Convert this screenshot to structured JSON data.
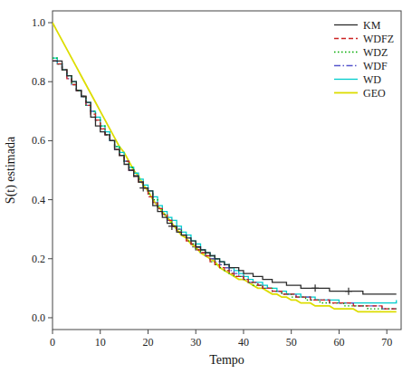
{
  "chart_data": {
    "type": "line",
    "title": "",
    "xlabel": "Tempo",
    "ylabel": "S(t) estimada",
    "xlim": [
      0,
      73
    ],
    "ylim": [
      -0.04,
      1.04
    ],
    "xticks": [
      0,
      10,
      20,
      30,
      40,
      50,
      60,
      70
    ],
    "yticks": [
      {
        "value": 0.0,
        "label": "0.0"
      },
      0.2,
      0.4,
      0.6,
      0.8,
      {
        "value": 1.0,
        "label": "1.0"
      }
    ],
    "grid": false,
    "legend": "upper right",
    "series": [
      {
        "name": "KM",
        "type": "step",
        "color": "#2b2b2b",
        "line_style": "solid",
        "x": [
          0,
          1,
          2,
          3,
          4,
          5,
          6,
          7,
          8,
          9,
          10,
          11,
          12,
          13,
          14,
          15,
          16,
          17,
          18,
          19,
          20,
          21,
          22,
          23,
          24,
          25,
          26,
          27,
          28,
          29,
          30,
          31,
          32,
          33,
          34,
          35,
          36,
          37,
          38,
          39,
          40,
          41,
          42,
          43,
          44,
          45,
          46,
          47,
          48,
          49,
          50,
          51,
          52,
          53,
          54,
          55,
          56,
          57,
          58,
          59,
          60,
          61,
          62,
          63,
          64,
          65,
          66,
          67,
          68,
          69,
          70,
          71,
          72
        ],
        "values": [
          0.87,
          0.87,
          0.84,
          0.82,
          0.8,
          0.77,
          0.75,
          0.73,
          0.68,
          0.65,
          0.63,
          0.62,
          0.6,
          0.57,
          0.55,
          0.52,
          0.5,
          0.48,
          0.46,
          0.44,
          0.43,
          0.38,
          0.36,
          0.34,
          0.32,
          0.31,
          0.29,
          0.28,
          0.27,
          0.26,
          0.24,
          0.23,
          0.22,
          0.21,
          0.2,
          0.19,
          0.18,
          0.17,
          0.17,
          0.16,
          0.15,
          0.15,
          0.14,
          0.14,
          0.13,
          0.13,
          0.12,
          0.12,
          0.12,
          0.11,
          0.11,
          0.11,
          0.1,
          0.1,
          0.1,
          0.1,
          0.1,
          0.1,
          0.09,
          0.09,
          0.09,
          0.09,
          0.09,
          0.09,
          0.09,
          0.08,
          0.08,
          0.08,
          0.08,
          0.08,
          0.08,
          0.08,
          0.08
        ]
      },
      {
        "name": "WDFZ",
        "type": "step",
        "color": "#cc2222",
        "line_style": "dashed",
        "x": [
          0,
          1,
          2,
          3,
          4,
          5,
          6,
          7,
          8,
          9,
          10,
          11,
          12,
          13,
          14,
          15,
          16,
          17,
          18,
          19,
          20,
          21,
          22,
          23,
          24,
          25,
          26,
          27,
          28,
          29,
          30,
          31,
          32,
          33,
          34,
          35,
          36,
          37,
          38,
          39,
          40,
          41,
          42,
          43,
          44,
          45,
          46,
          47,
          48,
          49,
          50,
          51,
          52,
          53,
          54,
          55,
          56,
          57,
          58,
          59,
          60,
          61,
          62,
          63,
          64,
          65,
          66,
          67,
          68,
          69,
          70,
          71,
          72
        ],
        "values": [
          0.87,
          0.86,
          0.84,
          0.81,
          0.79,
          0.77,
          0.75,
          0.72,
          0.69,
          0.67,
          0.64,
          0.62,
          0.6,
          0.57,
          0.55,
          0.53,
          0.5,
          0.48,
          0.46,
          0.44,
          0.41,
          0.39,
          0.37,
          0.35,
          0.33,
          0.31,
          0.29,
          0.28,
          0.26,
          0.25,
          0.23,
          0.22,
          0.21,
          0.19,
          0.18,
          0.17,
          0.16,
          0.15,
          0.14,
          0.14,
          0.13,
          0.12,
          0.12,
          0.11,
          0.1,
          0.1,
          0.09,
          0.09,
          0.08,
          0.08,
          0.08,
          0.07,
          0.07,
          0.07,
          0.06,
          0.06,
          0.06,
          0.06,
          0.05,
          0.05,
          0.05,
          0.05,
          0.05,
          0.04,
          0.04,
          0.04,
          0.04,
          0.04,
          0.04,
          0.03,
          0.03,
          0.03,
          0.03
        ]
      },
      {
        "name": "WDZ",
        "type": "step",
        "color": "#00aa00",
        "line_style": "dotted",
        "x": [
          0,
          1,
          2,
          3,
          4,
          5,
          6,
          7,
          8,
          9,
          10,
          11,
          12,
          13,
          14,
          15,
          16,
          17,
          18,
          19,
          20,
          21,
          22,
          23,
          24,
          25,
          26,
          27,
          28,
          29,
          30,
          31,
          32,
          33,
          34,
          35,
          36,
          37,
          38,
          39,
          40,
          41,
          42,
          43,
          44,
          45,
          46,
          47,
          48,
          49,
          50,
          51,
          52,
          53,
          54,
          55,
          56,
          57,
          58,
          59,
          60,
          61,
          62,
          63,
          64,
          65,
          66,
          67,
          68,
          69,
          70,
          71,
          72
        ],
        "values": [
          0.88,
          0.86,
          0.84,
          0.82,
          0.79,
          0.77,
          0.75,
          0.72,
          0.7,
          0.67,
          0.65,
          0.62,
          0.6,
          0.58,
          0.55,
          0.53,
          0.51,
          0.48,
          0.46,
          0.44,
          0.42,
          0.4,
          0.37,
          0.35,
          0.33,
          0.31,
          0.3,
          0.28,
          0.26,
          0.25,
          0.23,
          0.22,
          0.21,
          0.19,
          0.18,
          0.17,
          0.16,
          0.15,
          0.14,
          0.14,
          0.13,
          0.12,
          0.11,
          0.11,
          0.1,
          0.1,
          0.09,
          0.09,
          0.08,
          0.08,
          0.07,
          0.07,
          0.07,
          0.06,
          0.06,
          0.06,
          0.05,
          0.05,
          0.05,
          0.05,
          0.05,
          0.04,
          0.04,
          0.04,
          0.04,
          0.04,
          0.03,
          0.03,
          0.03,
          0.03,
          0.03,
          0.03,
          0.03
        ]
      },
      {
        "name": "WDF",
        "type": "step",
        "color": "#5555cc",
        "line_style": "dashdot",
        "x": [
          0,
          1,
          2,
          3,
          4,
          5,
          6,
          7,
          8,
          9,
          10,
          11,
          12,
          13,
          14,
          15,
          16,
          17,
          18,
          19,
          20,
          21,
          22,
          23,
          24,
          25,
          26,
          27,
          28,
          29,
          30,
          31,
          32,
          33,
          34,
          35,
          36,
          37,
          38,
          39,
          40,
          41,
          42,
          43,
          44,
          45,
          46,
          47,
          48,
          49,
          50,
          51,
          52,
          53,
          54,
          55,
          56,
          57,
          58,
          59,
          60,
          61,
          62,
          63,
          64,
          65,
          66,
          67,
          68,
          69,
          70,
          71,
          72
        ],
        "values": [
          0.87,
          0.86,
          0.84,
          0.81,
          0.79,
          0.77,
          0.75,
          0.72,
          0.7,
          0.67,
          0.64,
          0.62,
          0.6,
          0.57,
          0.55,
          0.53,
          0.5,
          0.48,
          0.46,
          0.44,
          0.42,
          0.39,
          0.37,
          0.35,
          0.33,
          0.31,
          0.3,
          0.28,
          0.27,
          0.25,
          0.24,
          0.22,
          0.21,
          0.2,
          0.19,
          0.18,
          0.17,
          0.16,
          0.15,
          0.14,
          0.13,
          0.12,
          0.12,
          0.11,
          0.1,
          0.1,
          0.09,
          0.09,
          0.08,
          0.08,
          0.08,
          0.07,
          0.07,
          0.07,
          0.06,
          0.06,
          0.06,
          0.06,
          0.05,
          0.05,
          0.05,
          0.05,
          0.05,
          0.04,
          0.04,
          0.04,
          0.04,
          0.04,
          0.04,
          0.03,
          0.03,
          0.03,
          0.03
        ]
      },
      {
        "name": "WD",
        "type": "step",
        "color": "#00cccc",
        "line_style": "solid",
        "x": [
          0,
          1,
          2,
          3,
          4,
          5,
          6,
          7,
          8,
          9,
          10,
          11,
          12,
          13,
          14,
          15,
          16,
          17,
          18,
          19,
          20,
          21,
          22,
          23,
          24,
          25,
          26,
          27,
          28,
          29,
          30,
          31,
          32,
          33,
          34,
          35,
          36,
          37,
          38,
          39,
          40,
          41,
          42,
          43,
          44,
          45,
          46,
          47,
          48,
          49,
          50,
          51,
          52,
          53,
          54,
          55,
          56,
          57,
          58,
          59,
          60,
          61,
          62,
          63,
          64,
          65,
          66,
          67,
          68,
          69,
          70,
          71,
          72
        ],
        "values": [
          0.88,
          0.86,
          0.84,
          0.82,
          0.8,
          0.77,
          0.75,
          0.73,
          0.7,
          0.68,
          0.65,
          0.63,
          0.6,
          0.58,
          0.56,
          0.53,
          0.51,
          0.49,
          0.47,
          0.45,
          0.43,
          0.41,
          0.38,
          0.36,
          0.34,
          0.33,
          0.31,
          0.29,
          0.28,
          0.26,
          0.25,
          0.23,
          0.22,
          0.21,
          0.2,
          0.19,
          0.18,
          0.17,
          0.16,
          0.15,
          0.14,
          0.13,
          0.12,
          0.12,
          0.11,
          0.1,
          0.1,
          0.09,
          0.09,
          0.08,
          0.08,
          0.08,
          0.07,
          0.07,
          0.07,
          0.06,
          0.06,
          0.06,
          0.06,
          0.06,
          0.05,
          0.05,
          0.05,
          0.05,
          0.05,
          0.05,
          0.05,
          0.05,
          0.05,
          0.05,
          0.05,
          0.05,
          0.06
        ]
      },
      {
        "name": "GEO",
        "type": "line",
        "color": "#dddd00",
        "line_style": "solid",
        "x": [
          0,
          1,
          2,
          3,
          4,
          5,
          6,
          7,
          8,
          9,
          10,
          11,
          12,
          13,
          14,
          15,
          16,
          17,
          18,
          19,
          20,
          21,
          22,
          23,
          24,
          25,
          26,
          27,
          28,
          29,
          30,
          31,
          32,
          33,
          34,
          35,
          36,
          37,
          38,
          39,
          40,
          41,
          42,
          43,
          44,
          45,
          46,
          47,
          48,
          49,
          50,
          51,
          52,
          53,
          54,
          55,
          56,
          57,
          58,
          59,
          60,
          61,
          62,
          63,
          64,
          65,
          66,
          67,
          68,
          69,
          70,
          71,
          72
        ],
        "values": [
          1.0,
          0.97,
          0.94,
          0.91,
          0.88,
          0.85,
          0.82,
          0.79,
          0.76,
          0.73,
          0.7,
          0.67,
          0.64,
          0.61,
          0.58,
          0.56,
          0.53,
          0.5,
          0.48,
          0.45,
          0.43,
          0.4,
          0.38,
          0.36,
          0.34,
          0.32,
          0.3,
          0.28,
          0.27,
          0.25,
          0.24,
          0.22,
          0.21,
          0.2,
          0.19,
          0.17,
          0.16,
          0.15,
          0.14,
          0.13,
          0.13,
          0.12,
          0.11,
          0.1,
          0.1,
          0.09,
          0.08,
          0.08,
          0.07,
          0.07,
          0.06,
          0.06,
          0.05,
          0.05,
          0.05,
          0.04,
          0.04,
          0.04,
          0.04,
          0.03,
          0.03,
          0.03,
          0.03,
          0.03,
          0.02,
          0.02,
          0.02,
          0.02,
          0.02,
          0.02,
          0.02,
          0.02,
          0.02
        ]
      },
      {
        "type": "scatter",
        "marker": "plus",
        "color": "#2b2b2b",
        "x": [
          19,
          25,
          30,
          34,
          37,
          55,
          62
        ],
        "values": [
          0.44,
          0.31,
          0.24,
          0.2,
          0.17,
          0.1,
          0.09
        ]
      }
    ]
  }
}
